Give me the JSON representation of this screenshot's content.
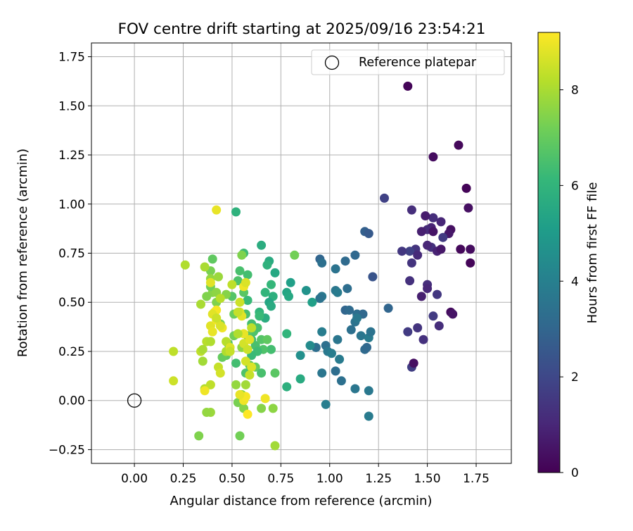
{
  "chart_data": {
    "type": "scatter",
    "title": "FOV centre drift starting at 2025/09/16 23:54:21",
    "xlabel": "Angular distance from reference (arcmin)",
    "ylabel": "Rotation from reference (arcmin)",
    "xlim": [
      -0.22,
      1.93
    ],
    "ylim": [
      -0.32,
      1.82
    ],
    "xticks": [
      "0.00",
      "0.25",
      "0.50",
      "0.75",
      "1.00",
      "1.25",
      "1.50",
      "1.75"
    ],
    "xtick_values": [
      0,
      0.25,
      0.5,
      0.75,
      1.0,
      1.25,
      1.5,
      1.75
    ],
    "yticks": [
      "−0.25",
      "0.00",
      "0.25",
      "0.50",
      "0.75",
      "1.00",
      "1.25",
      "1.50",
      "1.75"
    ],
    "ytick_values": [
      -0.25,
      0,
      0.25,
      0.5,
      0.75,
      1.0,
      1.25,
      1.5,
      1.75
    ],
    "grid": true,
    "legend": {
      "placement": "top-right",
      "entries": [
        "Reference platepar"
      ]
    },
    "reference_marker": {
      "label": "Reference platepar",
      "x": 0.0,
      "y": 0.0,
      "style": "open-circle"
    },
    "colorbar": {
      "label": "Hours from first FF file",
      "colormap": "viridis",
      "range": [
        0,
        9.2
      ],
      "ticks": [
        "0",
        "2",
        "4",
        "6",
        "8"
      ],
      "tick_values": [
        0,
        2,
        4,
        6,
        8
      ]
    },
    "colormap_stops": [
      "#440154",
      "#482878",
      "#3e4989",
      "#31688e",
      "#26828e",
      "#1f9e89",
      "#35b779",
      "#6ece58",
      "#b5de2b",
      "#fde725"
    ],
    "series": [
      {
        "values": [
          [
            1.4,
            1.6,
            0.1
          ],
          [
            1.53,
            1.24,
            0.3
          ],
          [
            1.66,
            1.3,
            0.2
          ],
          [
            1.7,
            1.08,
            0.1
          ],
          [
            1.71,
            0.98,
            0.4
          ],
          [
            1.67,
            0.77,
            0.2
          ],
          [
            1.72,
            0.77,
            0.3
          ],
          [
            1.72,
            0.7,
            0.1
          ],
          [
            1.62,
            0.87,
            0.4
          ],
          [
            1.61,
            0.85,
            0.6
          ],
          [
            1.57,
            0.91,
            1.0
          ],
          [
            1.53,
            0.93,
            1.2
          ],
          [
            1.49,
            0.94,
            0.7
          ],
          [
            1.52,
            0.88,
            0.9
          ],
          [
            1.5,
            0.87,
            1.1
          ],
          [
            1.47,
            0.86,
            0.8
          ],
          [
            1.53,
            0.86,
            0.5
          ],
          [
            1.58,
            0.83,
            1.6
          ],
          [
            1.52,
            0.78,
            1.3
          ],
          [
            1.5,
            0.79,
            1.0
          ],
          [
            1.44,
            0.77,
            1.4
          ],
          [
            1.41,
            0.76,
            1.8
          ],
          [
            1.37,
            0.76,
            1.5
          ],
          [
            1.55,
            0.76,
            0.9
          ],
          [
            1.57,
            0.77,
            0.6
          ],
          [
            1.42,
            0.97,
            1.2
          ],
          [
            1.42,
            0.7,
            1.4
          ],
          [
            1.45,
            0.74,
            1.1
          ],
          [
            1.41,
            0.61,
            1.3
          ],
          [
            1.5,
            0.59,
            1.2
          ],
          [
            1.5,
            0.57,
            1.0
          ],
          [
            1.55,
            0.54,
            1.5
          ],
          [
            1.47,
            0.53,
            0.8
          ],
          [
            1.53,
            0.43,
            1.6
          ],
          [
            1.56,
            0.38,
            1.2
          ],
          [
            1.45,
            0.37,
            1.4
          ],
          [
            1.4,
            0.35,
            1.6
          ],
          [
            1.48,
            0.31,
            1.3
          ],
          [
            1.42,
            0.17,
            1.7
          ],
          [
            1.43,
            0.19,
            0.4
          ],
          [
            1.62,
            0.45,
            0.3
          ],
          [
            1.63,
            0.44,
            0.5
          ],
          [
            1.28,
            1.03,
            1.8
          ],
          [
            1.18,
            0.86,
            2.8
          ],
          [
            1.2,
            0.85,
            2.6
          ],
          [
            1.22,
            0.63,
            2.4
          ],
          [
            1.3,
            0.47,
            3.0
          ],
          [
            1.13,
            0.74,
            3.1
          ],
          [
            1.08,
            0.71,
            3.2
          ],
          [
            0.95,
            0.72,
            3.0
          ],
          [
            0.96,
            0.7,
            3.4
          ],
          [
            1.03,
            0.67,
            3.5
          ],
          [
            1.03,
            0.56,
            3.6
          ],
          [
            1.04,
            0.55,
            3.8
          ],
          [
            1.09,
            0.57,
            3.3
          ],
          [
            0.96,
            0.53,
            3.7
          ],
          [
            0.95,
            0.52,
            3.5
          ],
          [
            1.08,
            0.46,
            3.0
          ],
          [
            1.1,
            0.46,
            3.2
          ],
          [
            1.14,
            0.44,
            3.3
          ],
          [
            1.17,
            0.44,
            3.1
          ],
          [
            1.13,
            0.4,
            3.5
          ],
          [
            1.14,
            0.42,
            3.7
          ],
          [
            1.11,
            0.36,
            3.4
          ],
          [
            1.16,
            0.33,
            3.6
          ],
          [
            1.2,
            0.32,
            3.8
          ],
          [
            1.21,
            0.35,
            3.5
          ],
          [
            0.96,
            0.35,
            3.9
          ],
          [
            0.93,
            0.27,
            3.3
          ],
          [
            0.98,
            0.28,
            3.4
          ],
          [
            1.04,
            0.31,
            3.6
          ],
          [
            0.99,
            0.25,
            3.7
          ],
          [
            1.01,
            0.24,
            3.9
          ],
          [
            1.05,
            0.21,
            3.8
          ],
          [
            1.18,
            0.26,
            3.2
          ],
          [
            1.19,
            0.27,
            3.1
          ],
          [
            0.96,
            0.14,
            3.6
          ],
          [
            1.03,
            0.15,
            3.3
          ],
          [
            1.06,
            0.1,
            3.4
          ],
          [
            1.13,
            0.06,
            3.6
          ],
          [
            1.2,
            0.05,
            3.7
          ],
          [
            0.98,
            -0.02,
            3.9
          ],
          [
            1.2,
            -0.08,
            3.8
          ],
          [
            0.88,
            0.56,
            4.7
          ],
          [
            0.85,
            0.23,
            4.6
          ],
          [
            0.9,
            0.28,
            4.4
          ],
          [
            0.91,
            0.5,
            5.2
          ],
          [
            0.78,
            0.55,
            5.4
          ],
          [
            0.79,
            0.53,
            5.5
          ],
          [
            0.8,
            0.6,
            5.2
          ],
          [
            0.85,
            0.11,
            5.6
          ],
          [
            0.78,
            0.07,
            5.8
          ],
          [
            0.78,
            0.34,
            6.0
          ],
          [
            0.65,
            0.79,
            5.7
          ],
          [
            0.69,
            0.71,
            5.6
          ],
          [
            0.68,
            0.69,
            5.9
          ],
          [
            0.72,
            0.65,
            5.5
          ],
          [
            0.7,
            0.59,
            6.1
          ],
          [
            0.67,
            0.55,
            6.0
          ],
          [
            0.71,
            0.53,
            5.8
          ],
          [
            0.69,
            0.5,
            5.4
          ],
          [
            0.7,
            0.48,
            5.6
          ],
          [
            0.64,
            0.45,
            6.0
          ],
          [
            0.67,
            0.42,
            5.7
          ],
          [
            0.64,
            0.43,
            6.2
          ],
          [
            0.56,
            0.75,
            6.3
          ],
          [
            0.52,
            0.96,
            5.9
          ],
          [
            0.54,
            0.66,
            6.5
          ],
          [
            0.58,
            0.64,
            6.4
          ],
          [
            0.53,
            0.61,
            6.6
          ],
          [
            0.56,
            0.55,
            6.8
          ],
          [
            0.58,
            0.51,
            6.2
          ],
          [
            0.5,
            0.53,
            6.7
          ],
          [
            0.57,
            0.44,
            6.5
          ],
          [
            0.6,
            0.39,
            6.4
          ],
          [
            0.61,
            0.35,
            6.6
          ],
          [
            0.63,
            0.37,
            6.5
          ],
          [
            0.58,
            0.33,
            6.8
          ],
          [
            0.6,
            0.31,
            6.3
          ],
          [
            0.62,
            0.28,
            6.5
          ],
          [
            0.65,
            0.31,
            6.7
          ],
          [
            0.68,
            0.31,
            6.9
          ],
          [
            0.7,
            0.26,
            6.4
          ],
          [
            0.66,
            0.26,
            6.6
          ],
          [
            0.63,
            0.25,
            6.3
          ],
          [
            0.6,
            0.23,
            6.2
          ],
          [
            0.59,
            0.18,
            6.8
          ],
          [
            0.62,
            0.17,
            7.0
          ],
          [
            0.65,
            0.14,
            6.5
          ],
          [
            0.72,
            0.14,
            6.8
          ],
          [
            0.57,
            0.14,
            6.6
          ],
          [
            0.52,
            0.19,
            6.4
          ],
          [
            0.48,
            0.29,
            6.7
          ],
          [
            0.47,
            0.23,
            6.9
          ],
          [
            0.45,
            0.22,
            7.0
          ],
          [
            0.51,
            0.33,
            7.2
          ],
          [
            0.44,
            0.39,
            7.3
          ],
          [
            0.42,
            0.5,
            7.4
          ],
          [
            0.47,
            0.54,
            7.5
          ],
          [
            0.51,
            0.44,
            7.1
          ],
          [
            0.4,
            0.55,
            7.5
          ],
          [
            0.39,
            0.58,
            7.2
          ],
          [
            0.37,
            0.53,
            7.4
          ],
          [
            0.4,
            0.72,
            6.9
          ],
          [
            0.39,
            0.66,
            7.3
          ],
          [
            0.39,
            0.62,
            7.7
          ],
          [
            0.43,
            0.63,
            7.8
          ],
          [
            0.55,
            0.74,
            7.4
          ],
          [
            0.42,
            0.55,
            7.6
          ],
          [
            0.36,
            0.68,
            8.0
          ],
          [
            0.26,
            0.69,
            8.1
          ],
          [
            0.82,
            0.74,
            7.2
          ],
          [
            0.34,
            0.49,
            8.0
          ],
          [
            0.37,
            0.3,
            8.2
          ],
          [
            0.34,
            0.25,
            8.3
          ],
          [
            0.35,
            0.26,
            8.0
          ],
          [
            0.39,
            0.3,
            8.1
          ],
          [
            0.47,
            0.3,
            8.2
          ],
          [
            0.2,
            0.25,
            8.3
          ],
          [
            0.2,
            0.1,
            8.5
          ],
          [
            0.35,
            0.2,
            7.9
          ],
          [
            0.43,
            0.17,
            8.4
          ],
          [
            0.44,
            0.14,
            8.6
          ],
          [
            0.47,
            0.25,
            8.1
          ],
          [
            0.55,
            0.27,
            7.6
          ],
          [
            0.52,
            0.08,
            7.7
          ],
          [
            0.57,
            0.08,
            7.9
          ],
          [
            0.55,
            0.03,
            7.6
          ],
          [
            0.53,
            -0.01,
            7.3
          ],
          [
            0.56,
            -0.04,
            7.5
          ],
          [
            0.54,
            -0.18,
            7.2
          ],
          [
            0.39,
            -0.06,
            7.8
          ],
          [
            0.37,
            -0.06,
            7.7
          ],
          [
            0.33,
            -0.18,
            7.4
          ],
          [
            0.36,
            0.06,
            8.1
          ],
          [
            0.39,
            0.08,
            8.3
          ],
          [
            0.65,
            -0.04,
            7.5
          ],
          [
            0.71,
            -0.04,
            7.6
          ],
          [
            0.72,
            -0.23,
            7.9
          ],
          [
            0.42,
            0.97,
            8.9
          ],
          [
            0.36,
            0.05,
            9.0
          ],
          [
            0.39,
            0.38,
            8.8
          ],
          [
            0.42,
            0.41,
            9.0
          ],
          [
            0.41,
            0.45,
            8.9
          ],
          [
            0.42,
            0.46,
            9.1
          ],
          [
            0.4,
            0.44,
            8.8
          ],
          [
            0.45,
            0.37,
            9.0
          ],
          [
            0.44,
            0.38,
            8.7
          ],
          [
            0.4,
            0.35,
            8.9
          ],
          [
            0.39,
            0.6,
            8.8
          ],
          [
            0.49,
            0.27,
            8.7
          ],
          [
            0.54,
            0.45,
            8.6
          ],
          [
            0.55,
            0.43,
            8.8
          ],
          [
            0.56,
            0.34,
            8.9
          ],
          [
            0.56,
            0.58,
            9.0
          ],
          [
            0.57,
            0.6,
            8.7
          ],
          [
            0.54,
            0.5,
            8.5
          ],
          [
            0.53,
            0.45,
            8.4
          ],
          [
            0.56,
            0.29,
            8.6
          ],
          [
            0.59,
            0.31,
            8.8
          ],
          [
            0.58,
            0.26,
            8.5
          ],
          [
            0.6,
            0.17,
            8.7
          ],
          [
            0.57,
            0.2,
            8.6
          ],
          [
            0.59,
            0.13,
            8.4
          ],
          [
            0.56,
            0.0,
            9.0
          ],
          [
            0.57,
            0.02,
            9.1
          ],
          [
            0.54,
            0.03,
            8.9
          ],
          [
            0.67,
            0.01,
            9.0
          ],
          [
            0.58,
            -0.07,
            9.2
          ],
          [
            0.5,
            0.59,
            8.3
          ],
          [
            0.44,
            0.52,
            8.2
          ],
          [
            0.42,
            0.42,
            8.5
          ],
          [
            0.49,
            0.25,
            8.4
          ],
          [
            0.6,
            0.37,
            8.3
          ],
          [
            0.53,
            0.34,
            8.1
          ]
        ]
      }
    ]
  }
}
